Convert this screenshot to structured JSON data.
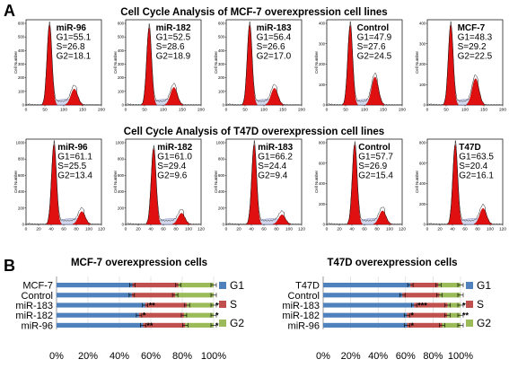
{
  "panel_a": {
    "label": "A",
    "y_axis_label": "Cell Number",
    "rows": [
      {
        "title": "Cell Cycle Analysis of MCF-7 overexpression cell lines",
        "x_ticks": [
          "0",
          "50",
          "100",
          "150",
          "200"
        ],
        "panels": [
          {
            "name": "miR-96",
            "g1": "G1=55.1",
            "s": "S=26.8",
            "g2": "G2=18.1",
            "y_ticks": [
              "0",
              "100",
              "200",
              "300",
              "400",
              "500",
              "600"
            ],
            "g1_peak": 1.0,
            "g2_peak": 0.2
          },
          {
            "name": "miR-182",
            "g1": "G1=52.5",
            "s": "S=28.6",
            "g2": "G2=18.9",
            "y_ticks": [
              "0",
              "100",
              "200",
              "300",
              "400",
              "500",
              "600"
            ],
            "g1_peak": 0.97,
            "g2_peak": 0.22
          },
          {
            "name": "miR-183",
            "g1": "G1=56.4",
            "s": "S=26.6",
            "g2": "G2=17.0",
            "y_ticks": [
              "0",
              "100",
              "200",
              "300",
              "400",
              "500",
              "600"
            ],
            "g1_peak": 1.0,
            "g2_peak": 0.21
          },
          {
            "name": "Control",
            "g1": "G1=47.9",
            "s": "S=27.6",
            "g2": "G2=24.5",
            "y_ticks": [
              "0",
              "100",
              "200",
              "300",
              "400"
            ],
            "g1_peak": 1.0,
            "g2_peak": 0.35
          },
          {
            "name": "MCF-7",
            "g1": "G1=48.3",
            "s": "S=29.2",
            "g2": "G2=22.5",
            "y_ticks": [
              "0",
              "100",
              "200",
              "300",
              "400"
            ],
            "g1_peak": 1.0,
            "g2_peak": 0.33
          }
        ]
      },
      {
        "title": "Cell Cycle Analysis of T47D overexpression cell lines",
        "x_ticks": [
          "0",
          "20",
          "40",
          "60",
          "80",
          "100",
          "120"
        ],
        "panels": [
          {
            "name": "miR-96",
            "g1": "G1=61.1",
            "s": "S=25.5",
            "g2": "G2=13.4",
            "y_ticks": [
              "0",
              "200",
              "400",
              "600",
              "800",
              "1000"
            ],
            "g1_peak": 1.0,
            "g2_peak": 0.16
          },
          {
            "name": "miR-182",
            "g1": "G1=61.0",
            "s": "S=29.4",
            "g2": "G2=9.6",
            "y_ticks": [
              "0",
              "200",
              "400",
              "600",
              "800",
              "1000"
            ],
            "g1_peak": 0.95,
            "g2_peak": 0.14
          },
          {
            "name": "miR-183",
            "g1": "G1=66.2",
            "s": "S=24.4",
            "g2": "G2=9.4",
            "y_ticks": [
              "0",
              "200",
              "400",
              "600",
              "800",
              "1000"
            ],
            "g1_peak": 1.0,
            "g2_peak": 0.12
          },
          {
            "name": "Control",
            "g1": "G1=57.7",
            "s": "S=26.9",
            "g2": "G2=15.4",
            "y_ticks": [
              "0",
              "200",
              "400",
              "600",
              "800"
            ],
            "g1_peak": 1.0,
            "g2_peak": 0.17
          },
          {
            "name": "T47D",
            "g1": "G1=63.5",
            "s": "S=20.4",
            "g2": "G2=16.1",
            "y_ticks": [
              "0",
              "200",
              "400",
              "600",
              "800"
            ],
            "g1_peak": 1.0,
            "g2_peak": 0.2
          }
        ]
      }
    ]
  },
  "panel_b": {
    "label": "B",
    "colors": {
      "G1": "#4f81bd",
      "S": "#c0504d",
      "G2": "#9bbb59"
    }
  },
  "chart_data": [
    {
      "type": "bar",
      "orientation": "horizontal",
      "stacked": true,
      "title": "MCF-7 overexpression cells",
      "categories": [
        "MCF-7",
        "Control",
        "miR-183",
        "miR-182",
        "miR-96"
      ],
      "series": [
        {
          "name": "G1",
          "values": [
            48.3,
            47.9,
            56.4,
            52.5,
            55.1
          ]
        },
        {
          "name": "S",
          "values": [
            29.2,
            27.6,
            26.6,
            28.6,
            26.8
          ]
        },
        {
          "name": "G2",
          "values": [
            22.5,
            24.5,
            17.0,
            18.9,
            18.1
          ]
        }
      ],
      "significance": [
        "",
        "",
        "**",
        "*",
        "**"
      ],
      "significance_g2": [
        "",
        "",
        "**",
        "*",
        "*"
      ],
      "x_ticks": [
        "0%",
        "20%",
        "40%",
        "60%",
        "80%",
        "100%"
      ],
      "xlim": [
        0,
        100
      ],
      "legend": "right"
    },
    {
      "type": "bar",
      "orientation": "horizontal",
      "stacked": true,
      "title": "T47D overexpression cells",
      "categories": [
        "T47D",
        "Control",
        "miR-183",
        "miR-182",
        "miR-96"
      ],
      "series": [
        {
          "name": "G1",
          "values": [
            63.5,
            57.7,
            66.2,
            61.0,
            61.1
          ]
        },
        {
          "name": "S",
          "values": [
            20.4,
            26.9,
            24.4,
            29.4,
            25.5
          ]
        },
        {
          "name": "G2",
          "values": [
            16.1,
            15.4,
            9.4,
            9.6,
            13.4
          ]
        }
      ],
      "significance": [
        "",
        "",
        "***",
        "*",
        "*"
      ],
      "significance_g2": [
        "",
        "",
        "**",
        "**",
        ""
      ],
      "x_ticks": [
        "0%",
        "20%",
        "40%",
        "60%",
        "80%",
        "100%"
      ],
      "xlim": [
        0,
        100
      ],
      "legend": "right"
    }
  ]
}
